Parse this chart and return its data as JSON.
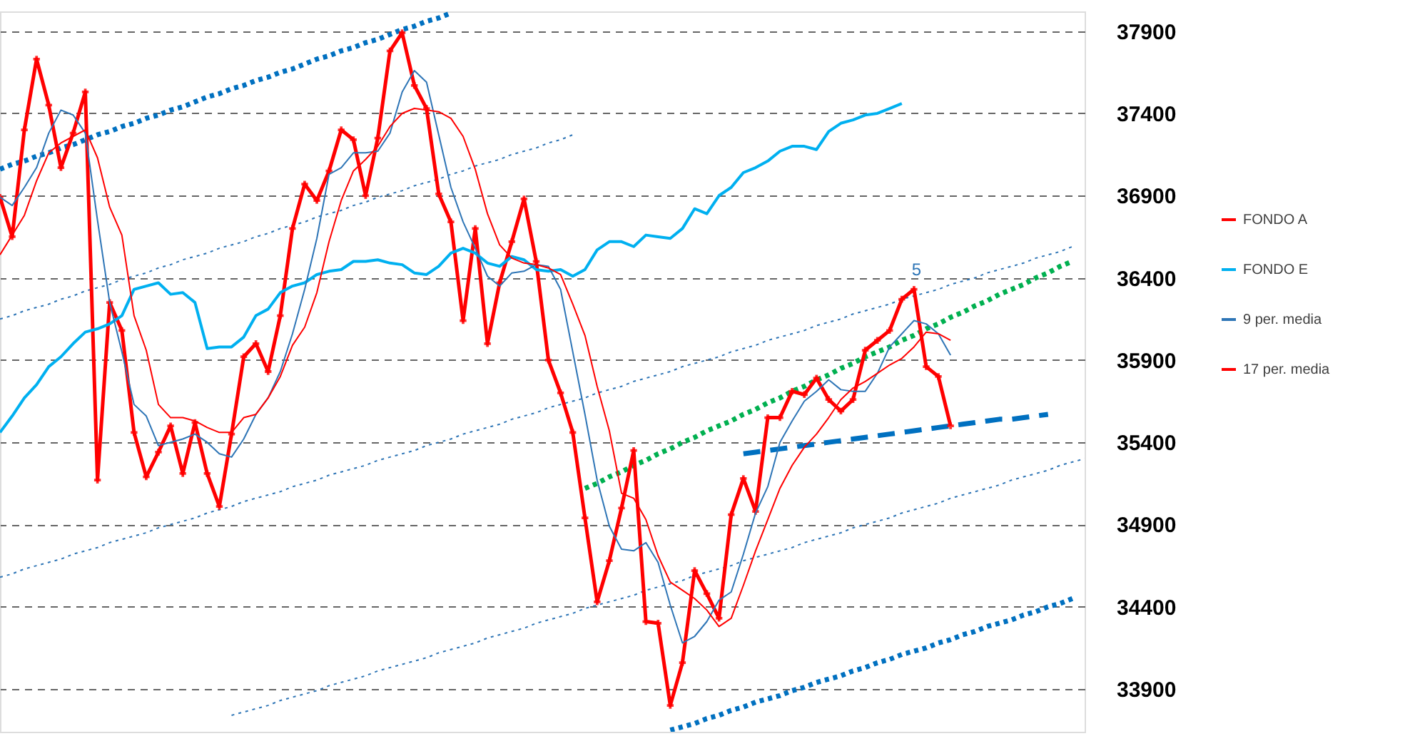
{
  "chart_data": {
    "type": "line",
    "categories": [
      null,
      null,
      null,
      null,
      null,
      null,
      null,
      null,
      null,
      null,
      null,
      null,
      null,
      null,
      null,
      null,
      null,
      null,
      null,
      null,
      null,
      null,
      null,
      null,
      null,
      null,
      null,
      null,
      null,
      null,
      null,
      null,
      null,
      null,
      null,
      null,
      null,
      null,
      null,
      null,
      null,
      null,
      null,
      null,
      null,
      null,
      null,
      null,
      null,
      null,
      null,
      null,
      null,
      null,
      null,
      null,
      null,
      null,
      null,
      null,
      null,
      null,
      null,
      null,
      null,
      null,
      null,
      null,
      null,
      null,
      null,
      null,
      null,
      null,
      null,
      null,
      null,
      null,
      null,
      null,
      null,
      null,
      null,
      null,
      null,
      null,
      null,
      null,
      null,
      null
    ],
    "ylim": [
      33640,
      38020
    ],
    "yticks": [
      33900,
      34400,
      34900,
      35400,
      35900,
      36400,
      36900,
      37400,
      37900
    ],
    "grid": "y",
    "tick_labels": "y",
    "legend": "right",
    "annotations": [
      {
        "text": "5",
        "y": 36370
      }
    ],
    "series": [
      {
        "type": "line",
        "color": "#0070c0",
        "line_style": "dotted",
        "values": [
          37060,
          37090,
          37110,
          37140,
          37160,
          37190,
          37210,
          37240,
          37270,
          37290,
          37320,
          37340,
          37370,
          37390,
          37420,
          37440,
          37470,
          37500,
          37520,
          37550,
          37570,
          37600,
          37620,
          37650,
          37670,
          37700,
          37730,
          37750,
          37780,
          37800,
          37830,
          37850,
          37880,
          37910,
          37930,
          37960,
          37980,
          38010,
          null,
          null,
          null,
          null,
          null,
          null,
          null,
          null,
          null,
          null,
          null,
          null,
          null,
          null,
          null,
          null,
          null,
          null,
          null,
          null,
          null,
          null,
          null,
          null,
          null,
          null,
          null,
          null,
          null,
          null,
          null,
          null,
          null,
          null,
          null,
          null,
          null,
          null,
          null,
          null,
          null,
          null,
          null,
          null,
          null,
          null,
          null,
          null,
          null,
          null,
          null,
          null
        ]
      },
      {
        "type": "line",
        "color": "#0070c0",
        "line_style": "dotted",
        "values": [
          null,
          null,
          null,
          null,
          null,
          null,
          null,
          null,
          null,
          null,
          null,
          null,
          null,
          null,
          null,
          null,
          null,
          null,
          null,
          null,
          null,
          null,
          null,
          null,
          null,
          null,
          null,
          null,
          null,
          null,
          null,
          null,
          null,
          null,
          null,
          null,
          null,
          null,
          null,
          null,
          null,
          null,
          null,
          null,
          null,
          null,
          null,
          null,
          null,
          null,
          null,
          null,
          null,
          null,
          null,
          33650,
          33670,
          33690,
          33720,
          33740,
          33770,
          33790,
          33820,
          33840,
          33860,
          33890,
          33910,
          33940,
          33960,
          33980,
          34010,
          34030,
          34060,
          34080,
          34110,
          34130,
          34150,
          34180,
          34200,
          34230,
          34250,
          34280,
          34300,
          34320,
          34350,
          34370,
          34400,
          34420,
          34450,
          null
        ]
      },
      {
        "type": "line",
        "color": "#00b050",
        "line_style": "dotted",
        "values": [
          null,
          null,
          null,
          null,
          null,
          null,
          null,
          null,
          null,
          null,
          null,
          null,
          null,
          null,
          null,
          null,
          null,
          null,
          null,
          null,
          null,
          null,
          null,
          null,
          null,
          null,
          null,
          null,
          null,
          null,
          null,
          null,
          null,
          null,
          null,
          null,
          null,
          null,
          null,
          null,
          null,
          null,
          null,
          null,
          null,
          null,
          null,
          null,
          35120,
          35150,
          35190,
          35220,
          35260,
          35290,
          35330,
          35360,
          35400,
          35430,
          35470,
          35500,
          35530,
          35570,
          35600,
          35640,
          35670,
          35710,
          35740,
          35780,
          35810,
          35850,
          35880,
          35920,
          35950,
          35980,
          36020,
          36050,
          36090,
          36120,
          36160,
          36190,
          36230,
          36260,
          36300,
          36330,
          36360,
          36400,
          36430,
          36470,
          36500,
          null
        ]
      },
      {
        "type": "line",
        "color": "#0070c0",
        "line_style": "dashed",
        "values": [
          null,
          null,
          null,
          null,
          null,
          null,
          null,
          null,
          null,
          null,
          null,
          null,
          null,
          null,
          null,
          null,
          null,
          null,
          null,
          null,
          null,
          null,
          null,
          null,
          null,
          null,
          null,
          null,
          null,
          null,
          null,
          null,
          null,
          null,
          null,
          null,
          null,
          null,
          null,
          null,
          null,
          null,
          null,
          null,
          null,
          null,
          null,
          null,
          null,
          null,
          null,
          null,
          null,
          null,
          null,
          null,
          null,
          null,
          null,
          null,
          null,
          35330,
          35340,
          35350,
          35360,
          35370,
          35380,
          35390,
          35400,
          35410,
          35420,
          35430,
          35440,
          35450,
          35460,
          35470,
          35480,
          35490,
          35500,
          35510,
          35520,
          35530,
          35540,
          35540,
          35550,
          35560,
          35570,
          null,
          null,
          null
        ]
      },
      {
        "type": "line",
        "color": "#2e75b6",
        "line_style": "dotted",
        "values": [
          36150,
          36170,
          36200,
          36220,
          36240,
          36270,
          36290,
          36320,
          36340,
          36360,
          36390,
          36410,
          36430,
          36460,
          36480,
          36510,
          36530,
          36550,
          36580,
          36600,
          36620,
          36650,
          36670,
          36700,
          36720,
          36740,
          36770,
          36790,
          36810,
          36840,
          36860,
          36890,
          36910,
          36930,
          36960,
          36980,
          37000,
          37030,
          37050,
          37080,
          37100,
          37120,
          37150,
          37170,
          37190,
          37220,
          37240,
          37270,
          null,
          null,
          null,
          null,
          null,
          null,
          null,
          null,
          null,
          null,
          null,
          null,
          null,
          null,
          null,
          null,
          null,
          null,
          null,
          null,
          null,
          null,
          null,
          null,
          null,
          null,
          null,
          null,
          null,
          null,
          null,
          null,
          null,
          null,
          null,
          null,
          null,
          null,
          null,
          null,
          null,
          null
        ]
      },
      {
        "type": "line",
        "color": "#2e75b6",
        "line_style": "dotted",
        "values": [
          34580,
          34600,
          34630,
          34650,
          34670,
          34690,
          34720,
          34740,
          34760,
          34790,
          34810,
          34830,
          34850,
          34880,
          34900,
          34920,
          34940,
          34970,
          34990,
          35010,
          35040,
          35060,
          35080,
          35100,
          35130,
          35150,
          35170,
          35200,
          35220,
          35240,
          35260,
          35290,
          35310,
          35330,
          35350,
          35380,
          35400,
          35420,
          35450,
          35470,
          35490,
          35510,
          35540,
          35560,
          35580,
          35610,
          35630,
          35650,
          35670,
          35700,
          35720,
          35740,
          35770,
          35790,
          35810,
          35830,
          35860,
          35880,
          35900,
          35920,
          35950,
          35970,
          35990,
          36020,
          36040,
          36060,
          36080,
          36110,
          36130,
          36150,
          36180,
          36200,
          36220,
          36240,
          36270,
          36290,
          36310,
          36330,
          36360,
          36380,
          36400,
          36430,
          36450,
          36470,
          36490,
          36520,
          36540,
          36560,
          36590,
          null
        ]
      },
      {
        "type": "line",
        "color": "#2e75b6",
        "line_style": "dotted",
        "values": [
          null,
          null,
          null,
          null,
          null,
          null,
          null,
          null,
          null,
          null,
          null,
          null,
          null,
          null,
          null,
          null,
          null,
          null,
          null,
          33740,
          33760,
          33780,
          33800,
          33830,
          33850,
          33870,
          33890,
          33920,
          33940,
          33960,
          33980,
          34010,
          34030,
          34050,
          34070,
          34090,
          34120,
          34140,
          34160,
          34180,
          34210,
          34230,
          34250,
          34270,
          34300,
          34320,
          34340,
          34360,
          34390,
          34410,
          34430,
          34450,
          34470,
          34500,
          34520,
          34540,
          34560,
          34590,
          34610,
          34630,
          34650,
          34680,
          34700,
          34720,
          34740,
          34760,
          34790,
          34810,
          34830,
          34850,
          34880,
          34900,
          34920,
          34940,
          34970,
          34990,
          35010,
          35030,
          35060,
          35080,
          35100,
          35120,
          35140,
          35170,
          35190,
          35210,
          35230,
          35260,
          35280,
          35300
        ]
      },
      {
        "name": "FONDO A",
        "color": "#ff0000",
        "marker": "cross",
        "values": [
          36890,
          36650,
          37300,
          37730,
          37450,
          37070,
          37280,
          37530,
          35170,
          36250,
          36080,
          35460,
          35190,
          35340,
          35500,
          35210,
          35520,
          35210,
          35010,
          35450,
          35920,
          36000,
          35830,
          36170,
          36700,
          36970,
          36870,
          37050,
          37300,
          37240,
          36900,
          37250,
          37780,
          37890,
          37570,
          37430,
          36910,
          36740,
          36140,
          36700,
          36000,
          36370,
          36620,
          36880,
          36500,
          35900,
          35700,
          35460,
          34940,
          34430,
          34680,
          35000,
          35350,
          34310,
          34300,
          33800,
          34060,
          34620,
          34480,
          34330,
          34960,
          35180,
          34980,
          35550,
          35550,
          35710,
          35690,
          35790,
          35660,
          35590,
          35660,
          35960,
          36020,
          36080,
          36270,
          36330,
          35860,
          35800,
          35500,
          null,
          null,
          null,
          null,
          null,
          null,
          null,
          null,
          null,
          null,
          null
        ]
      },
      {
        "name": "FONDO E",
        "color": "#00b0f0",
        "values": [
          35460,
          35560,
          35670,
          35750,
          35860,
          35920,
          36000,
          36070,
          36090,
          36120,
          36170,
          36330,
          36350,
          36370,
          36300,
          36310,
          36250,
          35970,
          35980,
          35980,
          36040,
          36170,
          36210,
          36310,
          36350,
          36370,
          36420,
          36440,
          36450,
          36500,
          36500,
          36510,
          36490,
          36480,
          36430,
          36420,
          36470,
          36550,
          36580,
          36550,
          36490,
          36470,
          36530,
          36510,
          36450,
          36440,
          36450,
          36410,
          36450,
          36570,
          36620,
          36620,
          36590,
          36660,
          36650,
          36640,
          36700,
          36820,
          36790,
          36900,
          36950,
          37040,
          37070,
          37110,
          37170,
          37200,
          37200,
          37180,
          37290,
          37340,
          37360,
          37390,
          37400,
          37430,
          37460,
          null,
          null,
          null,
          null,
          null,
          null,
          null,
          null,
          null,
          null,
          null,
          null,
          null,
          null,
          null
        ]
      },
      {
        "name": "9 per. media",
        "color": "#2e75b6",
        "values": [
          36890,
          36840,
          36950,
          37070,
          37280,
          37420,
          37390,
          37280,
          36750,
          36250,
          35950,
          35630,
          35560,
          35380,
          35400,
          35420,
          35450,
          35400,
          35330,
          35310,
          35420,
          35570,
          35670,
          35830,
          36060,
          36330,
          36640,
          37030,
          37070,
          37160,
          37160,
          37170,
          37280,
          37530,
          37660,
          37590,
          37270,
          36950,
          36740,
          36580,
          36410,
          36350,
          36430,
          36440,
          36480,
          36470,
          36330,
          35950,
          35570,
          35170,
          34890,
          34750,
          34740,
          34790,
          34670,
          34410,
          34180,
          34220,
          34310,
          34440,
          34490,
          34720,
          34970,
          35130,
          35400,
          35530,
          35650,
          35710,
          35780,
          35720,
          35710,
          35710,
          35820,
          35980,
          36060,
          36140,
          36120,
          36060,
          35930,
          null,
          null,
          null,
          null,
          null,
          null,
          null,
          null,
          null,
          null,
          null
        ]
      },
      {
        "name": "17 per. media",
        "color": "#ff0000",
        "values": [
          36540,
          36660,
          36780,
          36990,
          37160,
          37220,
          37260,
          37300,
          37130,
          36830,
          36660,
          36170,
          35960,
          35630,
          35550,
          35550,
          35530,
          35490,
          35460,
          35460,
          35550,
          35570,
          35670,
          35800,
          35990,
          36100,
          36310,
          36620,
          36870,
          37050,
          37120,
          37200,
          37320,
          37400,
          37430,
          37420,
          37410,
          37370,
          37260,
          37060,
          36790,
          36600,
          36520,
          36490,
          36480,
          36460,
          36420,
          36240,
          36050,
          35740,
          35470,
          35090,
          35060,
          34930,
          34710,
          34550,
          34500,
          34450,
          34380,
          34280,
          34330,
          34530,
          34740,
          34930,
          35120,
          35260,
          35370,
          35450,
          35550,
          35660,
          35730,
          35770,
          35820,
          35870,
          35910,
          35980,
          36070,
          36060,
          36020,
          null,
          null,
          null,
          null,
          null,
          null,
          null,
          null,
          null,
          null,
          null
        ]
      }
    ]
  }
}
